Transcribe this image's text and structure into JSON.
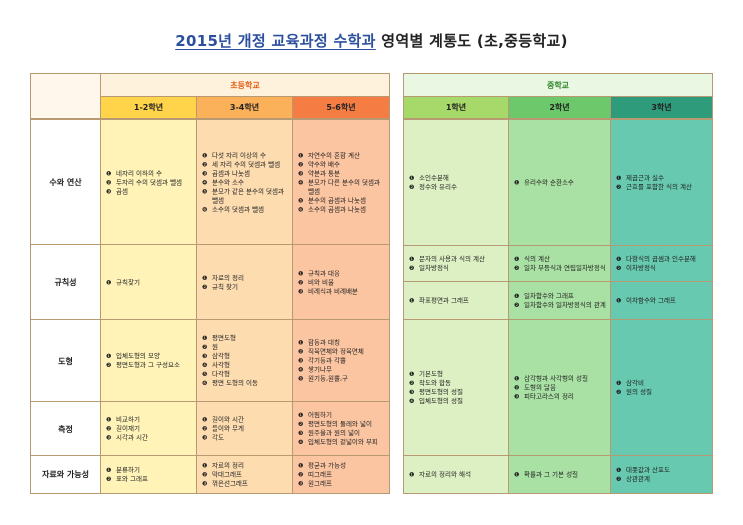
{
  "title": {
    "underlined": "2015년 개정 교육과정 수학과",
    "rest": "영역별 계통도 (초,중등학교)"
  },
  "colors": {
    "elem_school": "#f47f36",
    "mid_school": "#3aa83a",
    "g12": "#ffd44a",
    "g34": "#fbb15a",
    "g56": "#f57d44",
    "m1": "#a6d96a",
    "m2": "#6cc86a",
    "m3": "#2e9b7a"
  },
  "elementary": {
    "label": "초등학교",
    "grades": [
      "1-2학년",
      "3-4학년",
      "5-6학년"
    ]
  },
  "middle": {
    "label": "중학교",
    "grades": [
      "1학년",
      "2학년",
      "3학년"
    ]
  },
  "areas": [
    "수와 연산",
    "규칙성",
    "도형",
    "측정",
    "자료와 가능성"
  ],
  "elem_cells": {
    "g12": [
      [
        "❶ 네자리 이하의 수",
        "❷ 두자리 수의 덧셈과 뺄셈",
        "❸ 곱셈"
      ],
      [
        "❶ 규칙찾기"
      ],
      [
        "❶ 입체도형의 모양",
        "❷ 평면도형과 그 구성요소"
      ],
      [
        "❶ 비교하기",
        "❷ 길이재기",
        "❸ 시각과 시간"
      ],
      [
        "❶ 분류하기",
        "❷ 표와 그래프"
      ]
    ],
    "g34": [
      [
        "❶ 다섯 자리 이상의 수",
        "❷ 세 자리 수의 덧셈과 뺄셈",
        "❸ 곱셈과 나눗셈",
        "❹ 분수와 소수",
        "❺ 분모가 같은 분수의 덧셈과 뺄셈",
        "❻ 소수의 덧셈과 뺄셈"
      ],
      [
        "❶ 자료의 정리",
        "❷ 규칙 찾기"
      ],
      [
        "❶ 평면도형",
        "❷ 원",
        "❸ 삼각형",
        "❹ 사각형",
        "❺ 다각형",
        "❻ 평면 도형의 이동"
      ],
      [
        "❶ 길이와 시간",
        "❷ 들이와 무게",
        "❸ 각도"
      ],
      [
        "❶ 자료의 정리",
        "❷ 막대그래프",
        "❸ 꺾은선그래프"
      ]
    ],
    "g56": [
      [
        "❶ 자연수의 혼합 계산",
        "❷ 약수와 배수",
        "❸ 약분과 통분",
        "❹ 분모가 다른 분수의 덧셈과 뺄셈",
        "❺ 분수의 곱셈과 나눗셈",
        "❻ 소수의 곱셈과 나눗셈"
      ],
      [
        "❶ 규칙과 대응",
        "❷ 비와 비율",
        "❸ 비례식과 비례배분"
      ],
      [
        "❶ 합동과 대칭",
        "❷ 직육면체와 정육면체",
        "❸ 각기둥과 각뿔",
        "❹ 쌓기나무",
        "❺ 원기둥,원뿔,구"
      ],
      [
        "❶ 어림하기",
        "❷ 평면도형의 둘레와 넓이",
        "❸ 원주율과 원의 넓이",
        "❹ 입체도형의 겉넓이와 부피"
      ],
      [
        "❶ 평균과 가능성",
        "❷ 띠그래프",
        "❸ 원그래프"
      ]
    ]
  },
  "mid_cells": {
    "num": {
      "m1": [
        "❶ 소인수분해",
        "❷ 정수와 유리수"
      ],
      "m2": [
        "❶ 유리수와 순환소수"
      ],
      "m3": [
        "❶ 제곱근과 실수",
        "❷ 근호를 포함한 식의 계산"
      ]
    },
    "pattern_top": {
      "m1": [
        "❶ 문자의 사용과 식의 계산",
        "❷ 일차방정식"
      ],
      "m2": [
        "❶ 식의 계산",
        "❷ 일차 부등식과 연립일차방정식"
      ],
      "m3": [
        "❶ 다항식의 곱셈과 인수분해",
        "❷ 이차방정식"
      ]
    },
    "pattern_bottom": {
      "m1": [
        "❶ 좌표평면과 그래프"
      ],
      "m2": [
        "❶ 일차함수와 그래프",
        "❷ 일차함수와 일차방정식의 관계"
      ],
      "m3": [
        "❶ 이차함수와 그래프"
      ]
    },
    "geometry": {
      "m1": [
        "❶ 기본도형",
        "❷ 작도와 합동",
        "❸ 평면도형의 성질",
        "❹ 입체도형의 성질"
      ],
      "m2": [
        "❶ 삼각형과 사각형의 성질",
        "❷ 도형의 닮음",
        "❸ 피타고라스의 정리"
      ],
      "m3": [
        "❶ 삼각비",
        "❷ 원의 성질"
      ]
    },
    "data": {
      "m1": [
        "❶ 자료의 정리와 해석"
      ],
      "m2": [
        "❶ 확률과 그 기본 성질"
      ],
      "m3": [
        "❶ 대푯값과 산포도",
        "❷ 상관관계"
      ]
    }
  }
}
